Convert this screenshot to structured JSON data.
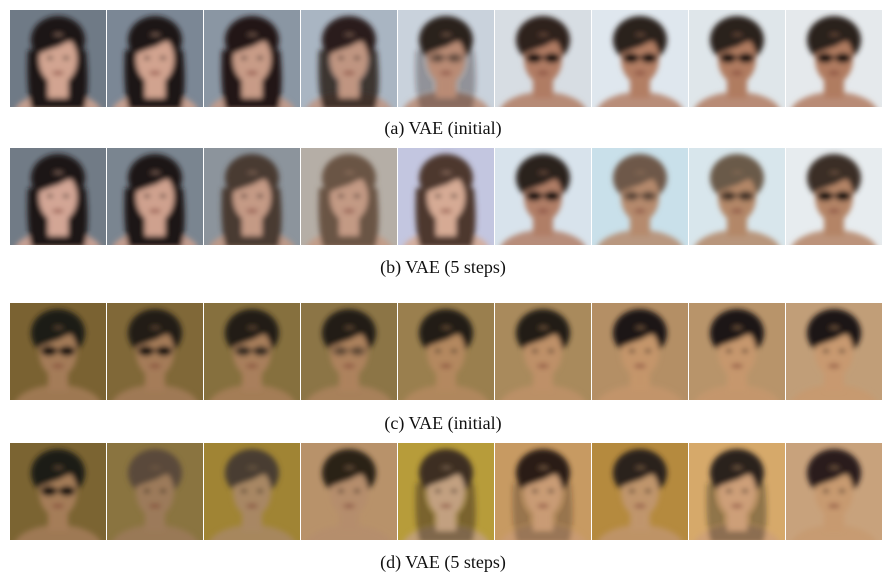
{
  "figure": {
    "panels": [
      {
        "caption": "(a) VAE (initial)",
        "bg": [
          "#6f7a86",
          "#7b8795",
          "#8a96a3",
          "#a9b5c2",
          "#c9d2dc",
          "#d7dde3",
          "#dfe7ee",
          "#dfe6ea",
          "#e5e9ec"
        ],
        "hair": [
          "#1b1412",
          "#1d1614",
          "#221916",
          "#2a1f1a",
          "#2b201b",
          "#2e231e",
          "#2b211d",
          "#2c221d",
          "#2b211c"
        ],
        "skin": [
          "#d2a491",
          "#d1a38f",
          "#c89b87",
          "#c09581",
          "#b98b74",
          "#b07c63",
          "#b27e64",
          "#b07b60",
          "#b07b60"
        ],
        "glasses": [
          0,
          0,
          0,
          0,
          0.35,
          1,
          1,
          1,
          1
        ],
        "long_hair": [
          1,
          1,
          1,
          0.85,
          0.35,
          0,
          0,
          0,
          0
        ]
      },
      {
        "caption": "(b) VAE (5 steps)",
        "bg": [
          "#717b86",
          "#7a8590",
          "#8c949c",
          "#b5aea6",
          "#c3c6e0",
          "#d8e3ec",
          "#c9e0ea",
          "#d8e6ec",
          "#e7ecef"
        ],
        "hair": [
          "#1a1412",
          "#1c1513",
          "#4a3a30",
          "#6b5444",
          "#4d392e",
          "#2c221d",
          "#6e5848",
          "#6a5a4a",
          "#3a2e26"
        ],
        "skin": [
          "#d3a695",
          "#cfa18e",
          "#c49a85",
          "#c39a84",
          "#d6aa94",
          "#b07e66",
          "#b58a6d",
          "#b38768",
          "#b48466"
        ],
        "glasses": [
          0,
          0,
          0,
          0,
          0,
          1,
          0.4,
          0.6,
          1
        ],
        "long_hair": [
          1,
          1,
          1,
          1,
          1,
          0,
          0,
          0,
          0
        ]
      },
      {
        "caption": "(c) VAE (initial)",
        "bg": [
          "#7a6232",
          "#806838",
          "#86703e",
          "#8c7546",
          "#9a7f4e",
          "#a98a5c",
          "#b48f65",
          "#b8946a",
          "#c19e78"
        ],
        "hair": [
          "#1e1a16",
          "#201b17",
          "#221c18",
          "#241d18",
          "#241c17",
          "#221a15",
          "#1f1814",
          "#1f1713",
          "#1e1612"
        ],
        "skin": [
          "#a47c58",
          "#a57c59",
          "#a97f5b",
          "#ad825d",
          "#b4885f",
          "#be9067",
          "#c4956b",
          "#c6976d",
          "#c8996f"
        ],
        "glasses": [
          1,
          1,
          0.7,
          0.35,
          0,
          0,
          0,
          0,
          0
        ],
        "long_hair": [
          0,
          0,
          0,
          0,
          0,
          0,
          0,
          0,
          0
        ]
      },
      {
        "caption": "(d) VAE (5 steps)",
        "bg": [
          "#7b6432",
          "#8a7440",
          "#a08434",
          "#b8926a",
          "#b79c3a",
          "#c79a62",
          "#b58a3e",
          "#d6a96a",
          "#c8a27c"
        ],
        "hair": [
          "#1f1a16",
          "#5a4a3a",
          "#4a3e30",
          "#2b2019",
          "#3d2e22",
          "#2a1f19",
          "#2a201a",
          "#2b201b",
          "#2a1f1a"
        ],
        "skin": [
          "#a57d59",
          "#9c7a5a",
          "#a88764",
          "#b58d6c",
          "#c2a080",
          "#c99b74",
          "#c0956c",
          "#cd9f78",
          "#c79a70"
        ],
        "glasses": [
          1,
          0,
          0,
          0,
          0,
          0,
          0,
          0,
          0
        ],
        "long_hair": [
          0,
          0,
          0,
          0,
          0.5,
          0.3,
          0,
          0.4,
          0
        ]
      }
    ]
  }
}
